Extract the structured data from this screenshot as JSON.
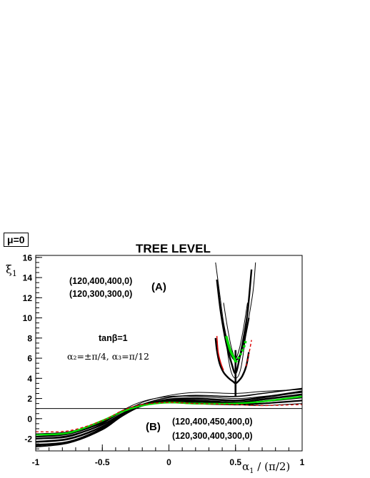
{
  "header": {
    "mu_label": "μ=0",
    "title": "TREE LEVEL"
  },
  "annotations": {
    "set_a_line1": "(120,400,400,0)",
    "set_a_line2": "(120,300,300,0)",
    "label_a": "(A)",
    "tanbeta": "tanβ=1",
    "alphas": "α₂=±π/4, α₃=π/12",
    "label_b": "(B)",
    "set_b_line1": "(120,400,450,400,0)",
    "set_b_line2": "(120,300,400,300,0)"
  },
  "axes": {
    "ylabel_main": "ξ",
    "ylabel_sub": "1",
    "xlabel_main": "α",
    "xlabel_sub": "1",
    "xlabel_tail": " / (π/2)"
  },
  "colors": {
    "black": "#000000",
    "green": "#00dd00",
    "red": "#dd0000"
  },
  "chart_data": {
    "type": "line",
    "title": "TREE LEVEL",
    "xlabel": "α1 / (π/2)",
    "ylabel": "ξ1",
    "xlim": [
      -1,
      1
    ],
    "ylim": [
      -3.2,
      16.2
    ],
    "xticks": [
      -1,
      -0.5,
      0,
      0.5,
      1
    ],
    "xtick_labels": [
      "-1",
      "-0.5",
      "0",
      "0.5",
      "1"
    ],
    "yticks": [
      -2,
      0,
      2,
      4,
      6,
      8,
      10,
      12,
      14,
      16
    ],
    "ytick_labels": [
      "-2",
      "0",
      "2",
      "4",
      "6",
      "8",
      "10",
      "12",
      "14",
      "16"
    ],
    "reference_line_y": 1,
    "series": [
      {
        "color": "black",
        "width": 2.6,
        "x": [
          -1,
          -0.75,
          -0.5,
          -0.35,
          -0.2,
          0,
          0.2,
          0.5,
          0.7,
          1
        ],
        "y": [
          -2.6,
          -2.3,
          -1.0,
          0.3,
          1.3,
          1.9,
          2.0,
          1.8,
          2.1,
          2.7
        ]
      },
      {
        "color": "black",
        "width": 2.6,
        "x": [
          -1,
          -0.75,
          -0.5,
          -0.35,
          -0.2,
          0,
          0.2,
          0.5,
          0.7,
          1
        ],
        "y": [
          -2.3,
          -2.0,
          -0.8,
          0.4,
          1.3,
          1.8,
          1.8,
          1.6,
          1.9,
          2.4
        ]
      },
      {
        "color": "black",
        "width": 2.2,
        "x": [
          -1,
          -0.75,
          -0.5,
          -0.35,
          -0.2,
          0,
          0.2,
          0.5,
          0.7,
          1
        ],
        "y": [
          -2.0,
          -1.7,
          -0.6,
          0.5,
          1.3,
          1.7,
          1.7,
          1.5,
          1.7,
          2.1
        ]
      },
      {
        "color": "black",
        "width": 2.2,
        "x": [
          -1,
          -0.75,
          -0.5,
          -0.35,
          -0.2,
          0,
          0.2,
          0.5,
          0.7,
          1
        ],
        "y": [
          -1.8,
          -1.5,
          -0.4,
          0.7,
          1.4,
          1.6,
          1.5,
          1.4,
          1.5,
          1.8
        ]
      },
      {
        "color": "black",
        "width": 1.6,
        "x": [
          -1,
          -0.75,
          -0.5,
          -0.35,
          -0.2,
          0,
          0.2,
          0.5,
          0.7,
          1
        ],
        "y": [
          -2.8,
          -2.4,
          -1.1,
          0.3,
          1.4,
          2.1,
          2.3,
          2.2,
          2.5,
          3.0
        ]
      },
      {
        "color": "black",
        "width": 1.0,
        "x": [
          -1,
          -0.75,
          -0.5,
          -0.35,
          -0.2,
          0,
          0.2,
          0.5,
          0.7,
          1
        ],
        "y": [
          -2.7,
          -2.3,
          -0.9,
          0.5,
          1.6,
          2.3,
          2.6,
          2.5,
          2.7,
          2.9
        ]
      },
      {
        "color": "black",
        "width": 1.0,
        "x": [
          -1,
          -0.75,
          -0.5,
          -0.35,
          -0.2,
          0,
          0.2,
          0.5,
          0.7,
          1
        ],
        "y": [
          -2.0,
          -1.8,
          -0.5,
          0.8,
          1.7,
          2.2,
          2.2,
          2.0,
          2.2,
          2.6
        ]
      },
      {
        "color": "black",
        "width": 1.0,
        "x": [
          -1,
          -0.75,
          -0.5,
          -0.35,
          -0.2,
          0,
          0.2,
          0.5,
          0.7,
          1
        ],
        "y": [
          -1.5,
          -1.3,
          -0.3,
          0.8,
          1.4,
          1.7,
          1.6,
          1.4,
          1.3,
          1.5
        ]
      },
      {
        "color": "green",
        "width": 2.4,
        "x": [
          -1,
          -0.75,
          -0.5,
          -0.35,
          -0.2,
          0,
          0.2,
          0.5,
          0.7,
          1
        ],
        "y": [
          -1.6,
          -1.4,
          -0.2,
          0.7,
          1.3,
          1.6,
          1.5,
          1.5,
          1.7,
          2.2
        ]
      },
      {
        "color": "red",
        "width": 1.3,
        "dashed": true,
        "x": [
          -1,
          -0.75,
          -0.5,
          -0.35,
          -0.2,
          0,
          0.2,
          0.5,
          0.7,
          1
        ],
        "y": [
          -1.3,
          -1.2,
          -0.2,
          0.8,
          1.4,
          1.6,
          1.5,
          1.4,
          1.3,
          1.4
        ]
      },
      {
        "color": "black",
        "width": 1.0,
        "x": [
          0.35,
          0.38,
          0.42,
          0.46,
          0.5,
          0.54,
          0.58,
          0.63,
          0.65
        ],
        "y": [
          15.5,
          12.5,
          8.5,
          5.0,
          4.0,
          5.0,
          8.5,
          12.5,
          15.5
        ]
      },
      {
        "color": "black",
        "width": 2.4,
        "x": [
          0.36,
          0.39,
          0.43,
          0.47,
          0.5,
          0.53,
          0.56,
          0.59,
          0.62
        ],
        "y": [
          13.8,
          10.5,
          7.5,
          5.5,
          4.5,
          6.0,
          8.0,
          10.5,
          14.8
        ]
      },
      {
        "color": "black",
        "width": 1.0,
        "x": [
          0.41,
          0.44,
          0.47,
          0.5,
          0.53,
          0.56,
          0.59
        ],
        "y": [
          11.5,
          9.0,
          7.0,
          6.0,
          7.0,
          9.0,
          11.5
        ]
      },
      {
        "color": "black",
        "width": 2.2,
        "x": [
          0.4,
          0.43,
          0.46,
          0.5,
          0.54,
          0.57,
          0.6
        ],
        "y": [
          10.0,
          8.0,
          6.5,
          5.8,
          6.5,
          8.0,
          10.0
        ]
      },
      {
        "color": "black",
        "width": 2.4,
        "x": [
          0.35,
          0.36,
          0.38,
          0.41,
          0.45,
          0.48,
          0.5,
          0.52,
          0.55,
          0.58,
          0.6
        ],
        "y": [
          8.0,
          6.8,
          5.5,
          4.6,
          4.0,
          3.7,
          3.5,
          3.7,
          4.2,
          5.2,
          6.6
        ]
      },
      {
        "color": "black",
        "width": 2.6,
        "x": [
          0.5,
          0.5,
          0.5
        ],
        "y": [
          2.2,
          4.0,
          6.8
        ]
      },
      {
        "color": "green",
        "width": 3.5,
        "x": [
          0.43,
          0.46,
          0.49,
          0.5
        ],
        "y": [
          8.2,
          6.8,
          6.0,
          5.6
        ]
      },
      {
        "color": "green",
        "width": 3.5,
        "dashed": true,
        "x": [
          0.5,
          0.53,
          0.56,
          0.58
        ],
        "y": [
          5.6,
          6.2,
          7.0,
          7.9
        ]
      },
      {
        "color": "red",
        "width": 1.4,
        "x": [
          0.36,
          0.37,
          0.39,
          0.41
        ],
        "y": [
          8.2,
          6.6,
          5.5,
          4.8
        ]
      },
      {
        "color": "red",
        "width": 1.4,
        "dashed": true,
        "x": [
          0.58,
          0.6,
          0.62
        ],
        "y": [
          5.2,
          6.4,
          7.8
        ]
      }
    ]
  }
}
